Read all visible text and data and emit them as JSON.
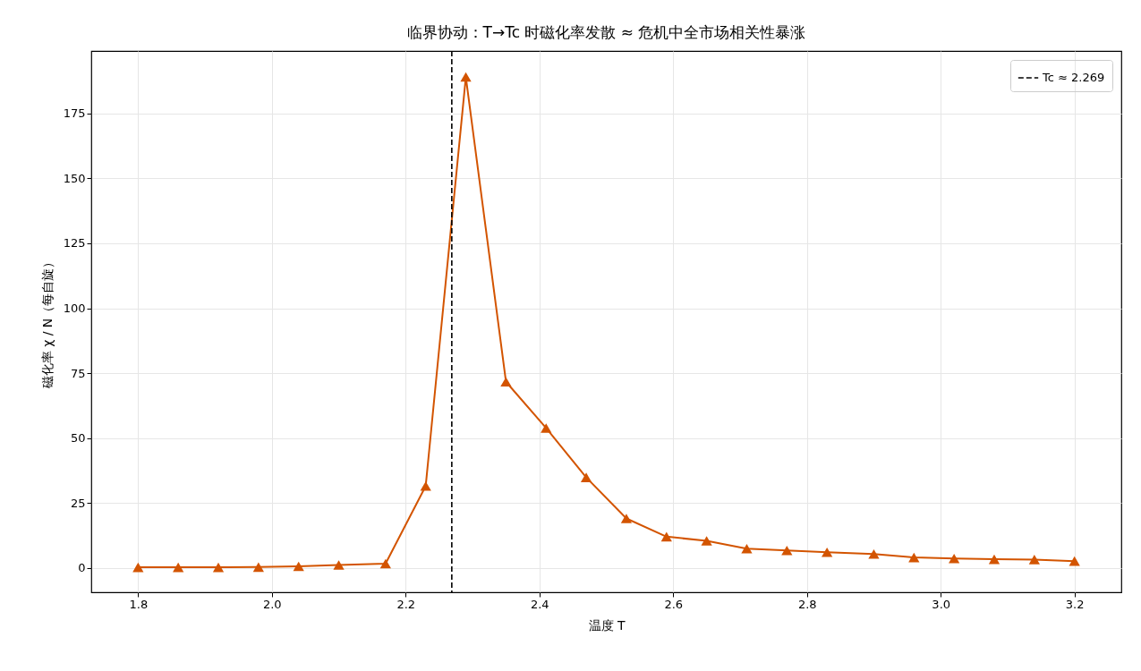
{
  "chart_data": {
    "type": "line",
    "title": "临界协动：T→Tc 时磁化率发散 ≈ 危机中全市场相关性暴涨",
    "xlabel": "温度 T",
    "ylabel": "磁化率 χ / N（每自旋）",
    "x": [
      1.8,
      1.86,
      1.92,
      1.98,
      2.04,
      2.1,
      2.17,
      2.23,
      2.29,
      2.35,
      2.41,
      2.47,
      2.53,
      2.59,
      2.65,
      2.71,
      2.77,
      2.83,
      2.9,
      2.96,
      3.02,
      3.08,
      3.14,
      3.2
    ],
    "series": [
      {
        "color": "#d35400",
        "values": [
          0.3,
          0.3,
          0.3,
          0.4,
          0.7,
          1.2,
          1.7,
          31.6,
          189,
          71.7,
          53.9,
          34.9,
          19.1,
          12.1,
          10.5,
          7.5,
          6.8,
          6.1,
          5.4,
          4.1,
          3.7,
          3.4,
          3.3,
          2.7
        ]
      }
    ],
    "xlim": [
      1.73,
      3.27
    ],
    "ylim": [
      -9.3,
      199
    ],
    "xticks": [
      1.8,
      {
        "value": 2,
        "label": "2.0"
      },
      2.2,
      2.4,
      2.6,
      2.8,
      {
        "value": 3,
        "label": "3.0"
      },
      3.2
    ],
    "yticks": [
      0,
      25,
      50,
      75,
      100,
      125,
      150,
      175
    ],
    "ref_lines": [
      {
        "axis": "x",
        "value": 2.269,
        "label": "Tc ≈ 2.269",
        "color": "#000000",
        "line_style": "dashed"
      }
    ],
    "grid": true,
    "legend": "top right",
    "marker": "triangle",
    "line_style": "solid"
  }
}
